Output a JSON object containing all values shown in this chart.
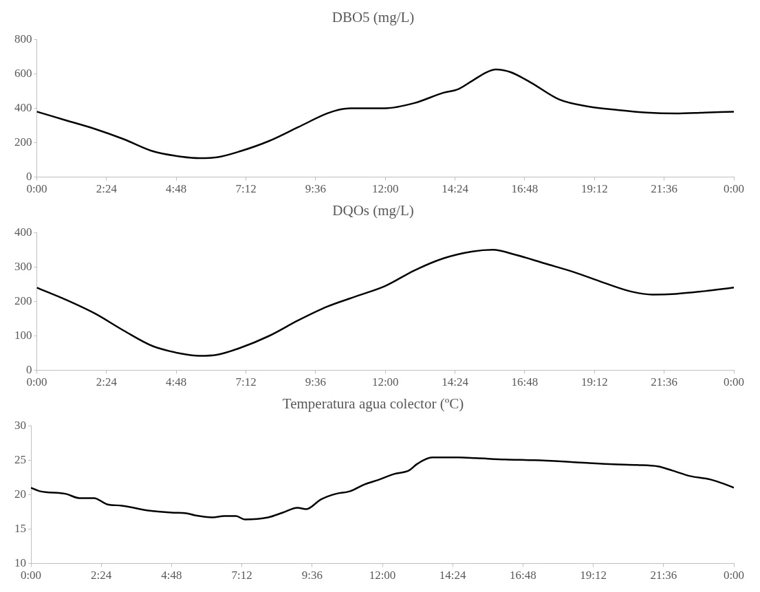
{
  "chart_data": [
    {
      "type": "line",
      "title": "DBO5 (mg/L)",
      "marker": "none",
      "color": "#000000",
      "x": [
        0,
        1,
        2,
        3,
        4,
        5,
        5.6,
        6.2,
        7,
        8,
        9,
        10,
        10.5,
        11,
        12,
        13,
        14,
        14.5,
        15,
        15.5,
        15.8,
        16.3,
        17,
        18,
        19,
        20,
        21,
        22,
        23,
        24
      ],
      "values": [
        380,
        330,
        280,
        220,
        150,
        118,
        110,
        115,
        150,
        210,
        290,
        370,
        395,
        400,
        400,
        430,
        490,
        510,
        560,
        610,
        625,
        610,
        550,
        450,
        410,
        390,
        375,
        370,
        375,
        380
      ],
      "xlim": [
        0,
        24
      ],
      "xticks": [
        {
          "value": 0,
          "label": "0:00"
        },
        {
          "value": 2.4,
          "label": "2:24"
        },
        {
          "value": 4.8,
          "label": "4:48"
        },
        {
          "value": 7.2,
          "label": "7:12"
        },
        {
          "value": 9.6,
          "label": "9:36"
        },
        {
          "value": 12,
          "label": "12:00"
        },
        {
          "value": 14.4,
          "label": "14:24"
        },
        {
          "value": 16.8,
          "label": "16:48"
        },
        {
          "value": 19.2,
          "label": "19:12"
        },
        {
          "value": 21.6,
          "label": "21:36"
        },
        {
          "value": 24,
          "label": "0:00"
        }
      ],
      "ylim": [
        0,
        800
      ],
      "yticks": [
        0,
        200,
        400,
        600,
        800
      ]
    },
    {
      "type": "line",
      "title": "DQOs (mg/L)",
      "marker": "none",
      "color": "#000000",
      "x": [
        0,
        1,
        2,
        3,
        4,
        5,
        5.6,
        6.2,
        7,
        8,
        9,
        10,
        11,
        12,
        13,
        14,
        15,
        15.7,
        16.5,
        17.5,
        18.5,
        19.5,
        20.5,
        21.2,
        22,
        23,
        24
      ],
      "values": [
        240,
        205,
        165,
        115,
        70,
        48,
        42,
        45,
        65,
        100,
        145,
        185,
        215,
        245,
        290,
        325,
        345,
        350,
        335,
        310,
        285,
        255,
        228,
        220,
        222,
        230,
        240
      ],
      "xlim": [
        0,
        24
      ],
      "xticks": [
        {
          "value": 0,
          "label": "0:00"
        },
        {
          "value": 2.4,
          "label": "2:24"
        },
        {
          "value": 4.8,
          "label": "4:48"
        },
        {
          "value": 7.2,
          "label": "7:12"
        },
        {
          "value": 9.6,
          "label": "9:36"
        },
        {
          "value": 12,
          "label": "12:00"
        },
        {
          "value": 14.4,
          "label": "14:24"
        },
        {
          "value": 16.8,
          "label": "16:48"
        },
        {
          "value": 19.2,
          "label": "19:12"
        },
        {
          "value": 21.6,
          "label": "21:36"
        },
        {
          "value": 24,
          "label": "0:00"
        }
      ],
      "ylim": [
        0,
        400
      ],
      "yticks": [
        0,
        100,
        200,
        300,
        400
      ]
    },
    {
      "type": "line",
      "title": "Temperatura agua colector (ºC)",
      "marker": "none",
      "color": "#000000",
      "x": [
        0,
        0.3,
        1.2,
        1.65,
        2.15,
        2.6,
        3.1,
        4,
        4.8,
        5.3,
        5.6,
        6.2,
        6.6,
        7,
        7.3,
        8.1,
        8.6,
        9.1,
        9.4,
        9.9,
        10.4,
        10.9,
        11.4,
        11.9,
        12.4,
        12.9,
        13.2,
        13.7,
        14.6,
        15.2,
        16.2,
        17.2,
        18.2,
        19,
        19.9,
        20.7,
        21.4,
        21.9,
        22.5,
        23.2,
        23.7,
        24
      ],
      "values": [
        21,
        20.5,
        20.1,
        19.5,
        19.5,
        18.6,
        18.4,
        17.7,
        17.4,
        17.3,
        17,
        16.7,
        16.9,
        16.9,
        16.4,
        16.7,
        17.4,
        18.1,
        17.9,
        19.3,
        20.1,
        20.5,
        21.5,
        22.2,
        23,
        23.5,
        24.5,
        25.4,
        25.4,
        25.3,
        25.1,
        25,
        24.8,
        24.6,
        24.4,
        24.3,
        24.1,
        23.5,
        22.7,
        22.2,
        21.5,
        21
      ],
      "xlim": [
        0,
        24
      ],
      "xticks": [
        {
          "value": 0,
          "label": "0:00"
        },
        {
          "value": 2.4,
          "label": "2:24"
        },
        {
          "value": 4.8,
          "label": "4:48"
        },
        {
          "value": 7.2,
          "label": "7:12"
        },
        {
          "value": 9.6,
          "label": "9:36"
        },
        {
          "value": 12,
          "label": "12:00"
        },
        {
          "value": 14.4,
          "label": "14:24"
        },
        {
          "value": 16.8,
          "label": "16:48"
        },
        {
          "value": 19.2,
          "label": "19:12"
        },
        {
          "value": 21.6,
          "label": "21:36"
        },
        {
          "value": 24,
          "label": "0:00"
        }
      ],
      "ylim": [
        10,
        30
      ],
      "yticks": [
        10,
        15,
        20,
        25,
        30
      ]
    }
  ]
}
